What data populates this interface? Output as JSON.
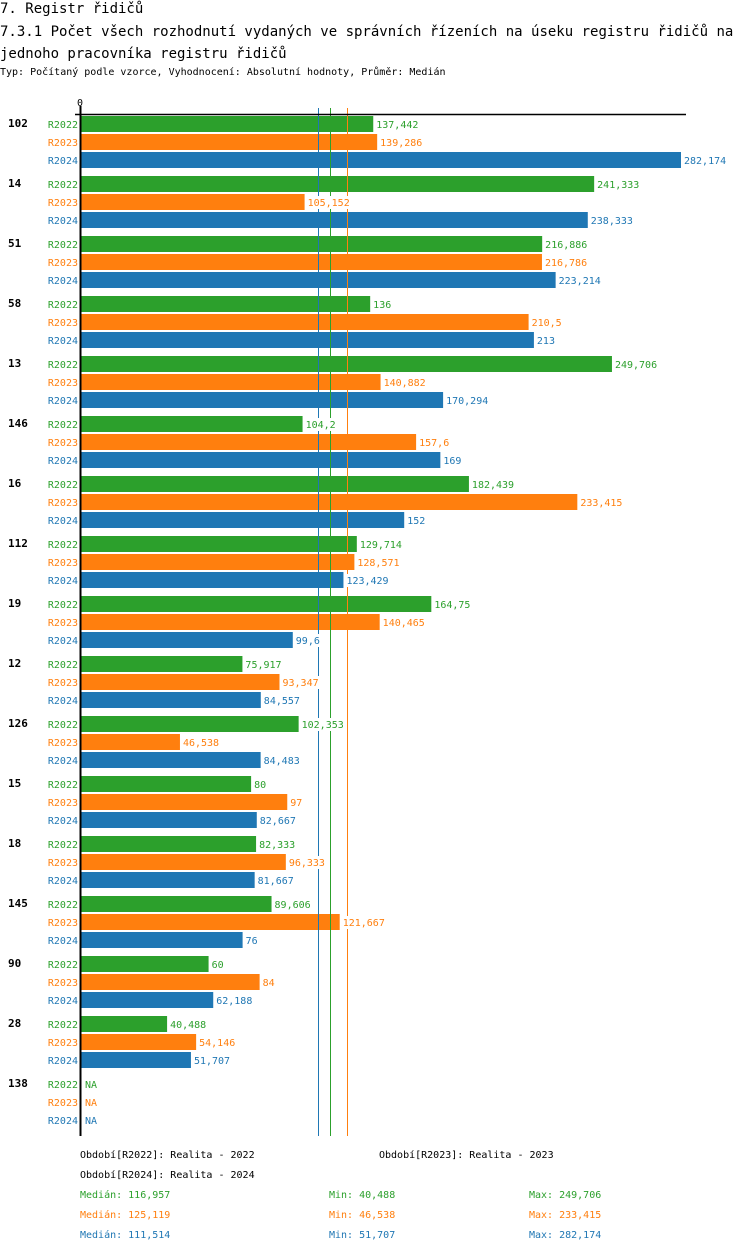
{
  "header": {
    "section": "7. Registr řidičů",
    "title": "7.3.1 Počet všech rozhodnutí vydaných ve správních řízeních na úseku registru řidičů na jednoho pracovníka registru řidičů",
    "subtitle": "Typ: Počítaný podle vzorce, Vyhodnocení: Absolutní hodnoty, Průměr: Medián"
  },
  "chart_data": {
    "type": "bar",
    "orientation": "horizontal",
    "title": "7.3.1 Počet všech rozhodnutí vydaných ve správních řízeních na úseku registru řidičů na jednoho pracovníka registru řidičů",
    "xlabel": "",
    "ylabel": "",
    "x_tick_labels": [
      "0"
    ],
    "xlim": [
      0,
      282.174
    ],
    "decimal_separator": ",",
    "categories": [
      "102",
      "14",
      "51",
      "58",
      "13",
      "146",
      "16",
      "112",
      "19",
      "12",
      "126",
      "15",
      "18",
      "145",
      "90",
      "28",
      "138"
    ],
    "series": [
      {
        "name": "R2022",
        "color": "#2ca02c",
        "values": [
          137.442,
          241.333,
          216.886,
          136,
          249.706,
          104.2,
          182.439,
          129.714,
          164.75,
          75.917,
          102.353,
          80,
          82.333,
          89.606,
          60,
          40.488,
          null
        ],
        "labels": [
          "137,442",
          "241,333",
          "216,886",
          "136",
          "249,706",
          "104,2",
          "182,439",
          "129,714",
          "164,75",
          "75,917",
          "102,353",
          "80",
          "82,333",
          "89,606",
          "60",
          "40,488",
          "NA"
        ]
      },
      {
        "name": "R2023",
        "color": "#ff7f0e",
        "values": [
          139.286,
          105.152,
          216.786,
          210.5,
          140.882,
          157.6,
          233.415,
          128.571,
          140.465,
          93.347,
          46.538,
          97,
          96.333,
          121.667,
          84,
          54.146,
          null
        ],
        "labels": [
          "139,286",
          "105,152",
          "216,786",
          "210,5",
          "140,882",
          "157,6",
          "233,415",
          "128,571",
          "140,465",
          "93,347",
          "46,538",
          "97",
          "96,333",
          "121,667",
          "84",
          "54,146",
          "NA"
        ]
      },
      {
        "name": "R2024",
        "color": "#1f77b4",
        "values": [
          282.174,
          238.333,
          223.214,
          213,
          170.294,
          169,
          152,
          123.429,
          99.6,
          84.557,
          84.483,
          82.667,
          81.667,
          76,
          62.188,
          51.707,
          null
        ],
        "labels": [
          "282,174",
          "238,333",
          "223,214",
          "213",
          "170,294",
          "169",
          "152",
          "123,429",
          "99,6",
          "84,557",
          "84,483",
          "82,667",
          "81,667",
          "76",
          "62,188",
          "51,707",
          "NA"
        ]
      }
    ],
    "reference_lines": [
      {
        "series": "R2022",
        "type": "median",
        "value": 116.957,
        "color": "#2ca02c"
      },
      {
        "series": "R2023",
        "type": "median",
        "value": 125.119,
        "color": "#ff7f0e"
      },
      {
        "series": "R2024",
        "type": "median",
        "value": 111.514,
        "color": "#1f77b4"
      }
    ],
    "legend": {
      "placement": "bottom",
      "entries": [
        {
          "text": "Období[R2022]: Realita - 2022",
          "color": "#2ca02c"
        },
        {
          "text": "Období[R2023]: Realita - 2023",
          "color": "#ff7f0e"
        },
        {
          "text": "Období[R2024]: Realita - 2024",
          "color": "#1f77b4"
        }
      ]
    },
    "stats": [
      {
        "median": "Medián: 116,957",
        "min": "Min: 40,488",
        "max": "Max: 249,706",
        "color": "#2ca02c"
      },
      {
        "median": "Medián: 125,119",
        "min": "Min: 46,538",
        "max": "Max: 233,415",
        "color": "#ff7f0e"
      },
      {
        "median": "Medián: 111,514",
        "min": "Min: 51,707",
        "max": "Max: 282,174",
        "color": "#1f77b4"
      }
    ]
  }
}
